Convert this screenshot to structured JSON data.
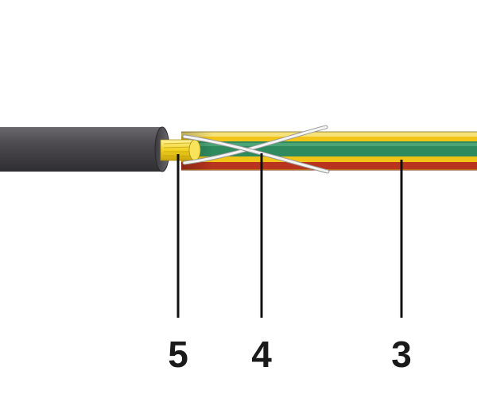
{
  "diagram": {
    "callouts": [
      {
        "label": "5",
        "part": "stranded-copper-conductor"
      },
      {
        "label": "4",
        "part": "crossed-binder-threads"
      },
      {
        "label": "3",
        "part": "colored-insulation"
      }
    ],
    "colors": {
      "sheath": "#454347",
      "sheath_edge": "#2a292c",
      "conductor": "#f0d020",
      "insulation_yellow": "#f2c418",
      "insulation_green": "#2f8a5e",
      "insulation_red": "#b8341e",
      "binder_thread": "#f4f4f4",
      "leader_line": "#111111",
      "label_text": "#1a1a1a"
    }
  }
}
